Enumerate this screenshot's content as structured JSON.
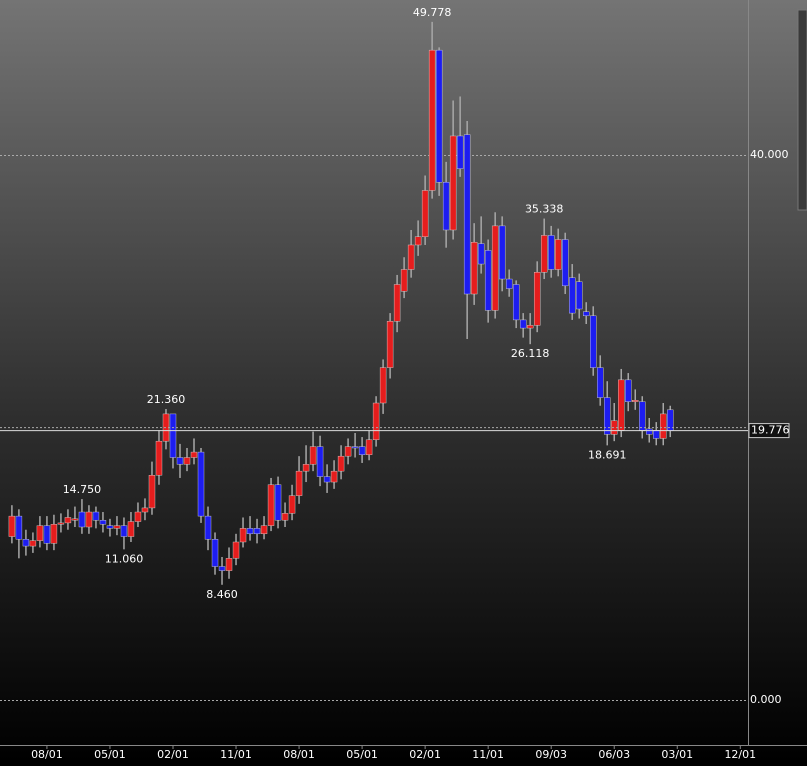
{
  "chart_data": {
    "type": "candlestick",
    "open": [
      12.0,
      13.5,
      11.8,
      11.3,
      11.7,
      12.8,
      11.5,
      12.9,
      13.0,
      13.2,
      13.8,
      12.7,
      13.8,
      13.2,
      12.8,
      12.6,
      12.8,
      12.0,
      13.1,
      13.8,
      14.1,
      16.5,
      19.0,
      21.0,
      17.8,
      17.3,
      17.8,
      18.2,
      13.5,
      11.8,
      9.8,
      9.5,
      10.4,
      11.6,
      12.6,
      12.6,
      12.2,
      12.8,
      15.8,
      13.2,
      13.7,
      15.0,
      16.8,
      17.3,
      18.6,
      16.4,
      16.0,
      16.8,
      17.9,
      18.6,
      18.6,
      18.0,
      19.1,
      21.8,
      24.4,
      27.8,
      30.0,
      31.6,
      33.4,
      34.0,
      37.4,
      47.7,
      38.0,
      34.5,
      41.4,
      41.5,
      29.8,
      33.5,
      33.0,
      28.6,
      34.8,
      30.9,
      30.5,
      27.9,
      27.3,
      27.5,
      31.4,
      34.1,
      31.6,
      33.8,
      31.0,
      30.7,
      28.5,
      28.2,
      24.4,
      22.2,
      19.5,
      19.8,
      23.5,
      21.9,
      21.9,
      19.9,
      19.8,
      19.2,
      21.3
    ],
    "high": [
      14.3,
      14.0,
      12.5,
      12.3,
      13.5,
      13.5,
      13.6,
      13.7,
      14.0,
      14.2,
      14.75,
      14.3,
      14.2,
      13.8,
      13.3,
      13.5,
      13.4,
      13.8,
      14.5,
      14.8,
      17.5,
      19.8,
      21.36,
      20.5,
      18.8,
      18.5,
      19.2,
      18.5,
      14.2,
      12.3,
      10.5,
      11.2,
      12.2,
      13.4,
      13.5,
      13.3,
      13.5,
      16.3,
      16.4,
      14.5,
      15.8,
      17.9,
      18.7,
      19.7,
      19.4,
      17.3,
      17.6,
      18.7,
      19.2,
      19.6,
      19.3,
      19.8,
      22.3,
      25.0,
      28.4,
      31.2,
      32.5,
      34.5,
      35.2,
      38.5,
      49.778,
      47.9,
      39.5,
      44.0,
      44.3,
      42.5,
      35.0,
      35.5,
      33.8,
      35.8,
      35.5,
      31.6,
      30.8,
      28.4,
      28.4,
      32.2,
      35.338,
      34.8,
      34.6,
      34.3,
      32.0,
      31.3,
      29.2,
      28.9,
      25.3,
      23.4,
      21.8,
      24.3,
      24.0,
      22.8,
      22.3,
      20.7,
      20.4,
      21.8,
      21.6
    ],
    "low": [
      11.5,
      10.4,
      10.6,
      10.8,
      11.2,
      11.0,
      11.0,
      12.3,
      12.5,
      12.7,
      12.2,
      12.2,
      12.6,
      12.3,
      12.0,
      12.1,
      11.06,
      11.6,
      12.7,
      13.2,
      13.6,
      15.8,
      18.4,
      17.0,
      16.3,
      16.8,
      17.3,
      13.0,
      11.0,
      9.2,
      8.46,
      8.9,
      9.9,
      11.2,
      11.7,
      11.5,
      11.8,
      12.4,
      12.6,
      12.7,
      13.2,
      14.4,
      16.0,
      16.8,
      15.7,
      15.2,
      15.5,
      16.2,
      17.3,
      17.8,
      17.4,
      17.6,
      18.6,
      21.0,
      23.6,
      27.0,
      29.5,
      31.0,
      32.6,
      33.4,
      36.8,
      37.0,
      33.2,
      33.8,
      38.4,
      26.5,
      29.0,
      31.3,
      27.7,
      28.0,
      30.0,
      29.6,
      27.3,
      26.6,
      26.118,
      27.0,
      30.9,
      31.0,
      31.1,
      29.8,
      27.9,
      28.0,
      27.6,
      23.8,
      21.6,
      18.691,
      19.0,
      19.3,
      21.2,
      21.3,
      19.2,
      18.9,
      18.7,
      18.7,
      19.3
    ],
    "close": [
      13.5,
      11.8,
      11.3,
      11.7,
      12.8,
      11.5,
      12.9,
      13.0,
      13.4,
      13.3,
      12.7,
      13.8,
      13.2,
      12.9,
      12.6,
      12.8,
      12.0,
      13.1,
      13.8,
      14.1,
      16.5,
      19.0,
      21.0,
      17.8,
      17.3,
      17.8,
      18.2,
      13.5,
      11.8,
      9.8,
      9.5,
      10.4,
      11.6,
      12.6,
      12.2,
      12.2,
      12.8,
      15.8,
      13.2,
      13.7,
      15.0,
      16.8,
      17.3,
      18.6,
      16.4,
      16.0,
      16.8,
      17.9,
      18.6,
      18.5,
      18.0,
      19.1,
      21.8,
      24.4,
      27.8,
      30.5,
      31.6,
      33.4,
      34.0,
      37.4,
      47.7,
      38.0,
      34.5,
      41.4,
      39.0,
      29.8,
      33.6,
      32.0,
      28.6,
      34.8,
      30.9,
      30.2,
      27.9,
      27.3,
      27.5,
      31.4,
      34.1,
      31.6,
      33.8,
      30.4,
      28.4,
      28.7,
      28.2,
      24.4,
      22.2,
      19.5,
      20.5,
      23.5,
      21.9,
      22.0,
      19.8,
      19.5,
      19.2,
      21.0,
      19.776
    ],
    "up_color": "#e51d1d",
    "down_color": "#1d1df0",
    "wick_color": "#a8a8a8",
    "ylim": [
      -3.3,
      51.38
    ],
    "yticks": [
      {
        "value": 0,
        "label": "0.000"
      },
      {
        "value": 40,
        "label": "40.000"
      }
    ],
    "grid": true,
    "xlim": [
      -1.7,
      105.1
    ],
    "xticks": [
      {
        "value": 5,
        "label": "08/01"
      },
      {
        "value": 14,
        "label": "05/01"
      },
      {
        "value": 23,
        "label": "02/01"
      },
      {
        "value": 32,
        "label": "11/01"
      },
      {
        "value": 41,
        "label": "08/01"
      },
      {
        "value": 50,
        "label": "05/01"
      },
      {
        "value": 59,
        "label": "02/01"
      },
      {
        "value": 68,
        "label": "11/01"
      },
      {
        "value": 77,
        "label": "09/03"
      },
      {
        "value": 86,
        "label": "06/03"
      },
      {
        "value": 95,
        "label": "03/01"
      },
      {
        "value": 104,
        "label": "12/01"
      }
    ],
    "annotations": [
      {
        "label": "49.778",
        "value": 49.778
      },
      {
        "label": "21.360",
        "value": 21.36
      },
      {
        "label": "14.750",
        "value": 14.75
      },
      {
        "label": "35.338",
        "value": 35.338
      },
      {
        "label": "11.060",
        "value": 11.06
      },
      {
        "label": "8.460",
        "value": 8.46
      },
      {
        "label": "26.118",
        "value": 26.118
      },
      {
        "label": "18.691",
        "value": 18.691
      }
    ],
    "last_price": 19.776
  }
}
